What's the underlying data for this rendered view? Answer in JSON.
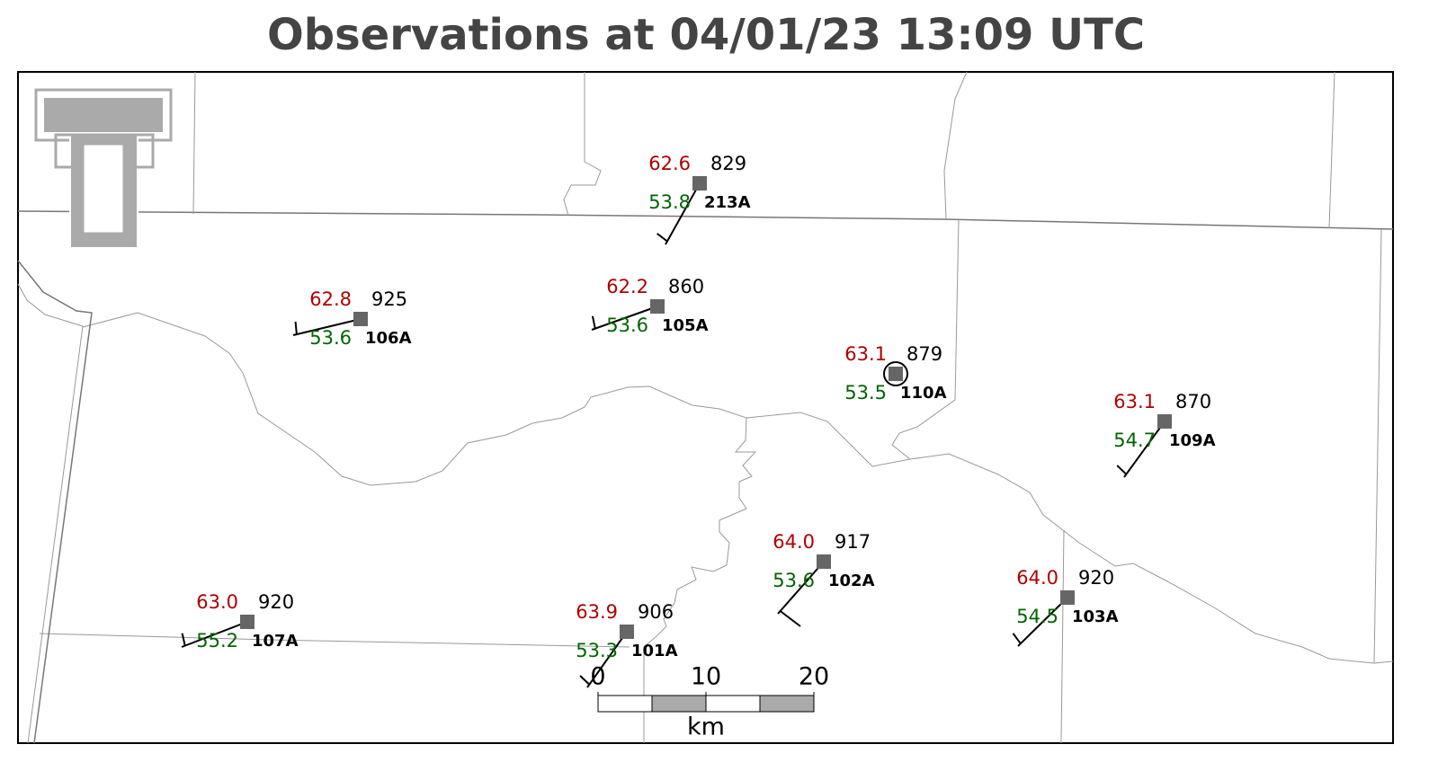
{
  "title": "Observations at 04/01/23 13:09 UTC",
  "stations": [
    {
      "id": "213A",
      "temperature": "62.6",
      "dewpoint": "53.8",
      "value": "829"
    },
    {
      "id": "106A",
      "temperature": "62.8",
      "dewpoint": "53.6",
      "value": "925"
    },
    {
      "id": "105A",
      "temperature": "62.2",
      "dewpoint": "53.6",
      "value": "860"
    },
    {
      "id": "110A",
      "temperature": "63.1",
      "dewpoint": "53.5",
      "value": "879"
    },
    {
      "id": "109A",
      "temperature": "63.1",
      "dewpoint": "54.7",
      "value": "870"
    },
    {
      "id": "107A",
      "temperature": "63.0",
      "dewpoint": "55.2",
      "value": "920"
    },
    {
      "id": "101A",
      "temperature": "63.9",
      "dewpoint": "53.3",
      "value": "906"
    },
    {
      "id": "102A",
      "temperature": "64.0",
      "dewpoint": "53.6",
      "value": "917"
    },
    {
      "id": "103A",
      "temperature": "64.0",
      "dewpoint": "54.5",
      "value": "920"
    }
  ],
  "scale_bar": {
    "ticks": [
      0,
      10,
      20
    ],
    "unit": "km"
  }
}
